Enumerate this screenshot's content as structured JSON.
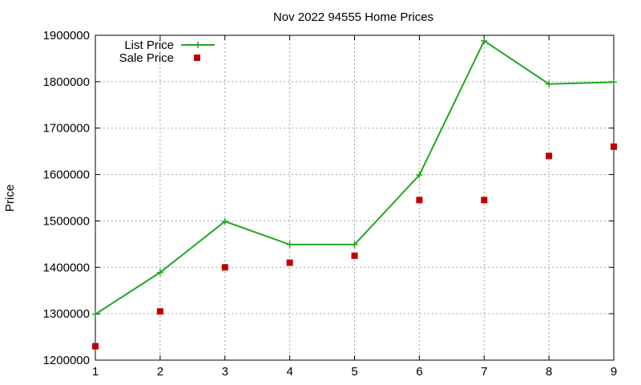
{
  "chart_data": {
    "type": "line",
    "title": "Nov 2022 94555 Home Prices",
    "xlabel": "",
    "ylabel": "Price",
    "x": [
      1,
      2,
      3,
      4,
      5,
      6,
      7,
      8,
      9
    ],
    "xlim": [
      1,
      9
    ],
    "ylim": [
      1200000,
      1900000
    ],
    "yticks": [
      1200000,
      1300000,
      1400000,
      1500000,
      1600000,
      1700000,
      1800000,
      1900000
    ],
    "xticks": [
      1,
      2,
      3,
      4,
      5,
      6,
      7,
      8,
      9
    ],
    "grid": true,
    "legend_position": "top-left",
    "series": [
      {
        "name": "List Price",
        "style": "linespoints",
        "marker": "plus",
        "color": "#1fa71f",
        "values": [
          1299000,
          1389000,
          1499000,
          1449000,
          1449000,
          1599000,
          1888000,
          1795000,
          1799000
        ]
      },
      {
        "name": "Sale Price",
        "style": "points",
        "marker": "square",
        "color": "#c00000",
        "values": [
          1230000,
          1305000,
          1400000,
          1410000,
          1425000,
          1545000,
          1545000,
          1640000,
          1660000
        ]
      }
    ]
  }
}
